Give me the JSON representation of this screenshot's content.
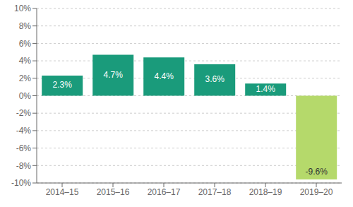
{
  "chart_data": {
    "type": "bar",
    "categories": [
      "2014–15",
      "2015–16",
      "2016–17",
      "2017–18",
      "2018–19",
      "2019–20"
    ],
    "values": [
      2.3,
      4.7,
      4.4,
      3.6,
      1.4,
      -9.6
    ],
    "value_labels": [
      "2.3%",
      "4.7%",
      "4.4%",
      "3.6%",
      "1.4%",
      "-9.6%"
    ],
    "data_labels": true,
    "colors": [
      "#1a9b7b",
      "#1a9b7b",
      "#1a9b7b",
      "#1a9b7b",
      "#1a9b7b",
      "#b5d96b"
    ],
    "ylim": [
      -10,
      10
    ],
    "yticks": [
      {
        "value": -10,
        "label": "-10%"
      },
      {
        "value": -8,
        "label": "-8%"
      },
      {
        "value": -6,
        "label": "-6%"
      },
      {
        "value": -4,
        "label": "-4%"
      },
      {
        "value": -2,
        "label": "-2%"
      },
      {
        "value": 0,
        "label": "0%"
      },
      {
        "value": 2,
        "label": "2%"
      },
      {
        "value": 4,
        "label": "4%"
      },
      {
        "value": 6,
        "label": "6%"
      },
      {
        "value": 8,
        "label": "8%"
      },
      {
        "value": 10,
        "label": "10%"
      }
    ],
    "grid": true
  }
}
